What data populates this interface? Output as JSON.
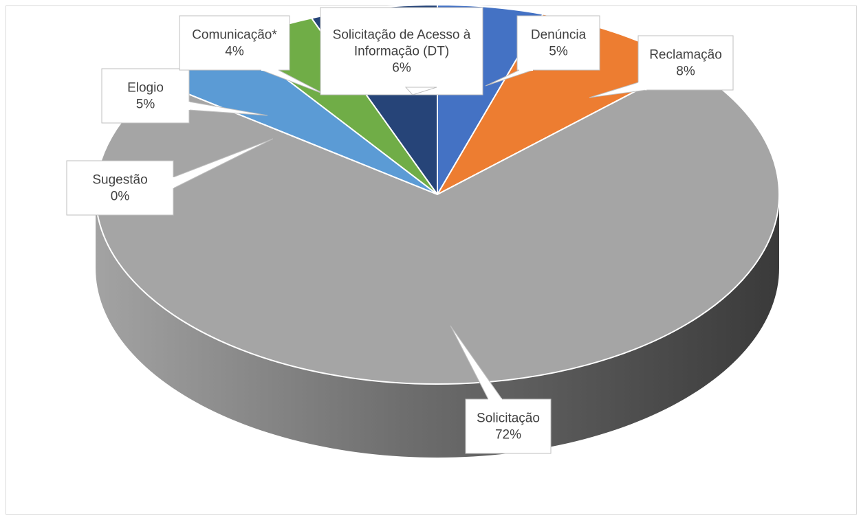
{
  "chart_data": {
    "type": "pie",
    "variant": "3d",
    "title": "",
    "slices": [
      {
        "label": "Solicitação",
        "pct_text": "72%",
        "value": 72,
        "color": "#A5A5A5"
      },
      {
        "label": "Sugestão",
        "pct_text": "0%",
        "value": 0,
        "color": "#264478"
      },
      {
        "label": "Elogio",
        "pct_text": "5%",
        "value": 5,
        "color": "#5B9BD5"
      },
      {
        "label": "Comunicação*",
        "pct_text": "4%",
        "value": 4,
        "color": "#70AD47"
      },
      {
        "label": "Solicitação de Acesso à\nInformação (DT)",
        "pct_text": "6%",
        "value": 6,
        "color": "#264478"
      },
      {
        "label": "Denúncia",
        "pct_text": "5%",
        "value": 5,
        "color": "#4472C4"
      },
      {
        "label": "Reclamação",
        "pct_text": "8%",
        "value": 8,
        "color": "#ED7D31"
      }
    ],
    "legend": "none",
    "data_labels": "callouts"
  }
}
